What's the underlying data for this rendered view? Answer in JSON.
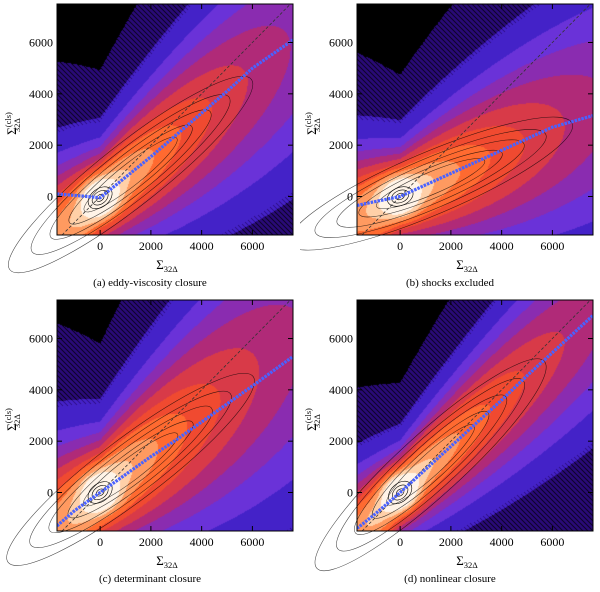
{
  "chart_data": [
    {
      "type": "heatmap",
      "panel": "a",
      "caption": "(a) eddy-viscosity closure",
      "xlabel": "Σ32Δ",
      "ylabel": "Σ(cls)32Δ",
      "xlim": [
        -1700,
        7600
      ],
      "ylim": [
        -1500,
        7500
      ],
      "xticks": [
        0,
        2000,
        4000,
        6000
      ],
      "yticks": [
        0,
        2000,
        4000,
        6000
      ],
      "reference_line": {
        "style": "dashed",
        "slope": 1
      },
      "fit_curve": {
        "x": [
          -1700,
          -500,
          0,
          1000,
          2000,
          3000,
          4000,
          5000,
          6000,
          7600
        ],
        "y": [
          100,
          0,
          -50,
          750,
          1550,
          2400,
          3250,
          4100,
          5000,
          6100
        ]
      },
      "density": {
        "ridge_slope": 0.78,
        "ridge_intercept": -80,
        "core_x": 0,
        "core_y": -50,
        "along_spread": 2600,
        "across_spread": 700,
        "wing_tilt": 0.08
      },
      "colormap": [
        "#000000",
        "#2a0a78",
        "#4422c8",
        "#6a32d8",
        "#8a2cb0",
        "#b02a78",
        "#d83a48",
        "#f04a30",
        "#ff6a30",
        "#ff9a60",
        "#ffd0a8",
        "#fff4e8"
      ]
    },
    {
      "type": "heatmap",
      "panel": "b",
      "caption": "(b) shocks excluded",
      "xlabel": "Σ32Δ",
      "ylabel": "Σ(cls)32Δ",
      "xlim": [
        -1700,
        7600
      ],
      "ylim": [
        -1500,
        7500
      ],
      "xticks": [
        0,
        2000,
        4000,
        6000
      ],
      "yticks": [
        0,
        2000,
        4000,
        6000
      ],
      "reference_line": {
        "style": "dashed",
        "slope": 1
      },
      "fit_curve": {
        "x": [
          -1700,
          -1000,
          0,
          1000,
          2000,
          3000,
          4000,
          5000,
          6000,
          7600
        ],
        "y": [
          -350,
          -200,
          0,
          450,
          900,
          1350,
          1800,
          2250,
          2700,
          3150
        ]
      },
      "density": {
        "ridge_slope": 0.42,
        "ridge_intercept": 0,
        "core_x": 0,
        "core_y": 0,
        "along_spread": 2900,
        "across_spread": 650,
        "wing_tilt": 0.12
      },
      "colormap": [
        "#000000",
        "#2a0a78",
        "#4422c8",
        "#6a32d8",
        "#8a2cb0",
        "#b02a78",
        "#d83a48",
        "#f04a30",
        "#ff6a30",
        "#ff9a60",
        "#ffd0a8",
        "#fff4e8"
      ]
    },
    {
      "type": "heatmap",
      "panel": "c",
      "caption": "(c) determinant closure",
      "xlabel": "Σ32Δ",
      "ylabel": "Σ(cls)32Δ",
      "xlim": [
        -1700,
        7600
      ],
      "ylim": [
        -1500,
        7500
      ],
      "xticks": [
        0,
        2000,
        4000,
        6000
      ],
      "yticks": [
        0,
        2000,
        4000,
        6000
      ],
      "reference_line": {
        "style": "dashed",
        "slope": 1
      },
      "fit_curve": {
        "x": [
          -1700,
          -1000,
          0,
          1000,
          2000,
          3000,
          4000,
          5000,
          6000,
          7600
        ],
        "y": [
          -1300,
          -700,
          0,
          700,
          1400,
          2050,
          2750,
          3450,
          4150,
          5300
        ]
      },
      "density": {
        "ridge_slope": 0.75,
        "ridge_intercept": 0,
        "core_x": 0,
        "core_y": 0,
        "along_spread": 2800,
        "across_spread": 850,
        "wing_tilt": 0.1
      },
      "colormap": [
        "#000000",
        "#2a0a78",
        "#4422c8",
        "#6a32d8",
        "#8a2cb0",
        "#b02a78",
        "#d83a48",
        "#f04a30",
        "#ff6a30",
        "#ff9a60",
        "#ffd0a8",
        "#fff4e8"
      ]
    },
    {
      "type": "heatmap",
      "panel": "d",
      "caption": "(d) nonlinear closure",
      "xlabel": "Σ32Δ",
      "ylabel": "Σ(cls)32Δ",
      "xlim": [
        -1700,
        7600
      ],
      "ylim": [
        -1500,
        7500
      ],
      "xticks": [
        0,
        2000,
        4000,
        6000
      ],
      "yticks": [
        0,
        2000,
        4000,
        6000
      ],
      "reference_line": {
        "style": "dashed",
        "slope": 1
      },
      "fit_curve": {
        "x": [
          -1700,
          -1000,
          0,
          1000,
          2000,
          3000,
          4000,
          5000,
          6000,
          7600
        ],
        "y": [
          -1400,
          -850,
          0,
          900,
          1800,
          2700,
          3600,
          4550,
          5450,
          6900
        ]
      },
      "density": {
        "ridge_slope": 0.9,
        "ridge_intercept": 0,
        "core_x": 0,
        "core_y": 0,
        "along_spread": 2900,
        "across_spread": 560,
        "wing_tilt": 0.06
      },
      "colormap": [
        "#000000",
        "#2a0a78",
        "#4422c8",
        "#6a32d8",
        "#8a2cb0",
        "#b02a78",
        "#d83a48",
        "#f04a30",
        "#ff6a30",
        "#ff9a60",
        "#ffd0a8",
        "#fff4e8"
      ]
    }
  ]
}
